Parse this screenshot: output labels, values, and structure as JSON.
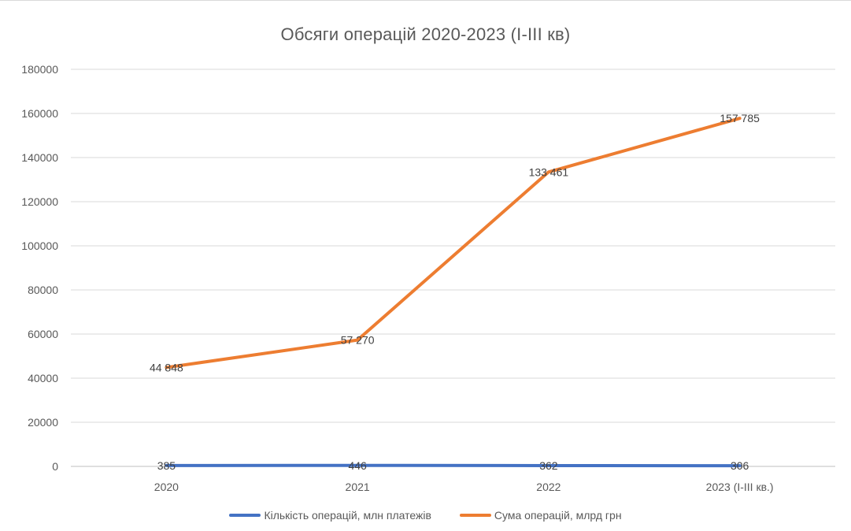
{
  "chart_data": {
    "type": "line",
    "title": "Обсяги операцій 2020-2023 (I-III кв)",
    "categories": [
      "2020",
      "2021",
      "2022",
      "2023 (I-III кв.)"
    ],
    "ylim": [
      0,
      180000
    ],
    "yticks": [
      0,
      20000,
      40000,
      60000,
      80000,
      100000,
      120000,
      140000,
      160000,
      180000
    ],
    "grid": true,
    "legend_position": "bottom",
    "series": [
      {
        "name": "Кількість операцій, млн платежів",
        "color": "#4472c4",
        "values": [
          385,
          446,
          362,
          306
        ],
        "labels": [
          "385",
          "446",
          "362",
          "306"
        ]
      },
      {
        "name": "Сума операцій, млрд грн",
        "color": "#ed7d31",
        "values": [
          44848,
          57270,
          133461,
          157785
        ],
        "labels": [
          "44 848",
          "57 270",
          "133 461",
          "157 785"
        ]
      }
    ]
  }
}
